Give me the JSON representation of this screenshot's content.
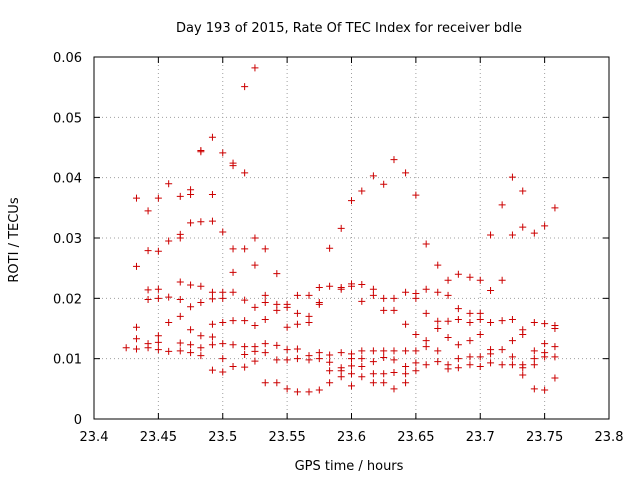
{
  "chart_data": {
    "type": "scatter",
    "title": "Day 193 of 2015, Rate Of TEC Index for receiver bdle",
    "xlabel": "GPS time / hours",
    "ylabel": "ROTI / TECUs",
    "xlim": [
      23.4,
      23.8
    ],
    "ylim": [
      0,
      0.06
    ],
    "xticks": [
      23.4,
      23.45,
      23.5,
      23.55,
      23.6,
      23.65,
      23.7,
      23.75,
      23.8
    ],
    "xtick_labels": [
      "23.4",
      "23.45",
      "23.5",
      "23.55",
      "23.6",
      "23.65",
      "23.7",
      "23.75",
      "23.8"
    ],
    "yticks": [
      0,
      0.01,
      0.02,
      0.03,
      0.04,
      0.05,
      0.06
    ],
    "ytick_labels": [
      "0",
      "0.01",
      "0.02",
      "0.03",
      "0.04",
      "0.05",
      "0.06"
    ],
    "grid": true,
    "marker": "+",
    "color": "#cc0000",
    "series": [
      {
        "points": [
          [
            23.425,
            0.0118
          ],
          [
            23.433,
            0.0366
          ],
          [
            23.433,
            0.0253
          ],
          [
            23.433,
            0.0152
          ],
          [
            23.433,
            0.0133
          ],
          [
            23.433,
            0.0116
          ],
          [
            23.442,
            0.0345
          ],
          [
            23.442,
            0.0279
          ],
          [
            23.442,
            0.0214
          ],
          [
            23.442,
            0.0198
          ],
          [
            23.442,
            0.0125
          ],
          [
            23.442,
            0.0118
          ],
          [
            23.45,
            0.0366
          ],
          [
            23.45,
            0.0278
          ],
          [
            23.45,
            0.0215
          ],
          [
            23.45,
            0.02
          ],
          [
            23.45,
            0.0138
          ],
          [
            23.45,
            0.0127
          ],
          [
            23.45,
            0.0115
          ],
          [
            23.458,
            0.039
          ],
          [
            23.458,
            0.0295
          ],
          [
            23.458,
            0.0202
          ],
          [
            23.458,
            0.016
          ],
          [
            23.458,
            0.0112
          ],
          [
            23.467,
            0.0369
          ],
          [
            23.467,
            0.0306
          ],
          [
            23.467,
            0.03
          ],
          [
            23.467,
            0.0227
          ],
          [
            23.467,
            0.0198
          ],
          [
            23.467,
            0.017
          ],
          [
            23.467,
            0.0126
          ],
          [
            23.467,
            0.0113
          ],
          [
            23.475,
            0.038
          ],
          [
            23.475,
            0.0372
          ],
          [
            23.475,
            0.0325
          ],
          [
            23.475,
            0.0222
          ],
          [
            23.475,
            0.0186
          ],
          [
            23.475,
            0.0148
          ],
          [
            23.475,
            0.0123
          ],
          [
            23.475,
            0.011
          ],
          [
            23.483,
            0.0445
          ],
          [
            23.483,
            0.0443
          ],
          [
            23.483,
            0.0327
          ],
          [
            23.483,
            0.022
          ],
          [
            23.483,
            0.0193
          ],
          [
            23.483,
            0.0138
          ],
          [
            23.483,
            0.0118
          ],
          [
            23.483,
            0.0105
          ],
          [
            23.492,
            0.0467
          ],
          [
            23.492,
            0.0372
          ],
          [
            23.492,
            0.0328
          ],
          [
            23.492,
            0.021
          ],
          [
            23.492,
            0.0199
          ],
          [
            23.492,
            0.0157
          ],
          [
            23.492,
            0.0136
          ],
          [
            23.492,
            0.0123
          ],
          [
            23.492,
            0.0081
          ],
          [
            23.5,
            0.0441
          ],
          [
            23.5,
            0.031
          ],
          [
            23.5,
            0.021
          ],
          [
            23.5,
            0.02
          ],
          [
            23.5,
            0.016
          ],
          [
            23.5,
            0.0125
          ],
          [
            23.5,
            0.01
          ],
          [
            23.5,
            0.0078
          ],
          [
            23.508,
            0.0424
          ],
          [
            23.508,
            0.042
          ],
          [
            23.508,
            0.0282
          ],
          [
            23.508,
            0.0243
          ],
          [
            23.508,
            0.021
          ],
          [
            23.508,
            0.0163
          ],
          [
            23.508,
            0.0123
          ],
          [
            23.508,
            0.0087
          ],
          [
            23.517,
            0.0551
          ],
          [
            23.517,
            0.0408
          ],
          [
            23.517,
            0.0282
          ],
          [
            23.517,
            0.0197
          ],
          [
            23.517,
            0.0163
          ],
          [
            23.517,
            0.012
          ],
          [
            23.517,
            0.0107
          ],
          [
            23.517,
            0.0086
          ],
          [
            23.525,
            0.0582
          ],
          [
            23.525,
            0.03
          ],
          [
            23.525,
            0.0255
          ],
          [
            23.525,
            0.0185
          ],
          [
            23.525,
            0.0155
          ],
          [
            23.525,
            0.012
          ],
          [
            23.525,
            0.0112
          ],
          [
            23.525,
            0.0096
          ],
          [
            23.533,
            0.0282
          ],
          [
            23.533,
            0.0205
          ],
          [
            23.533,
            0.0193
          ],
          [
            23.533,
            0.0165
          ],
          [
            23.533,
            0.0125
          ],
          [
            23.533,
            0.011
          ],
          [
            23.533,
            0.006
          ],
          [
            23.542,
            0.0241
          ],
          [
            23.542,
            0.019
          ],
          [
            23.542,
            0.018
          ],
          [
            23.542,
            0.0122
          ],
          [
            23.542,
            0.0098
          ],
          [
            23.542,
            0.006
          ],
          [
            23.55,
            0.019
          ],
          [
            23.55,
            0.0185
          ],
          [
            23.55,
            0.0152
          ],
          [
            23.55,
            0.0115
          ],
          [
            23.55,
            0.0098
          ],
          [
            23.55,
            0.005
          ],
          [
            23.558,
            0.0205
          ],
          [
            23.558,
            0.0175
          ],
          [
            23.558,
            0.0157
          ],
          [
            23.558,
            0.0116
          ],
          [
            23.558,
            0.01
          ],
          [
            23.558,
            0.0045
          ],
          [
            23.567,
            0.0205
          ],
          [
            23.567,
            0.017
          ],
          [
            23.567,
            0.016
          ],
          [
            23.567,
            0.0105
          ],
          [
            23.567,
            0.0098
          ],
          [
            23.567,
            0.0045
          ],
          [
            23.575,
            0.0218
          ],
          [
            23.575,
            0.0193
          ],
          [
            23.575,
            0.019
          ],
          [
            23.575,
            0.011
          ],
          [
            23.575,
            0.01
          ],
          [
            23.575,
            0.0048
          ],
          [
            23.583,
            0.0283
          ],
          [
            23.583,
            0.022
          ],
          [
            23.583,
            0.0106
          ],
          [
            23.583,
            0.0094
          ],
          [
            23.583,
            0.008
          ],
          [
            23.583,
            0.006
          ],
          [
            23.592,
            0.0316
          ],
          [
            23.592,
            0.0218
          ],
          [
            23.592,
            0.0215
          ],
          [
            23.592,
            0.011
          ],
          [
            23.592,
            0.0085
          ],
          [
            23.592,
            0.008
          ],
          [
            23.592,
            0.007
          ],
          [
            23.6,
            0.0362
          ],
          [
            23.6,
            0.0224
          ],
          [
            23.6,
            0.022
          ],
          [
            23.6,
            0.0108
          ],
          [
            23.6,
            0.01
          ],
          [
            23.6,
            0.0088
          ],
          [
            23.6,
            0.0075
          ],
          [
            23.6,
            0.0055
          ],
          [
            23.608,
            0.0378
          ],
          [
            23.608,
            0.0223
          ],
          [
            23.608,
            0.0195
          ],
          [
            23.608,
            0.0113
          ],
          [
            23.608,
            0.01
          ],
          [
            23.608,
            0.0087
          ],
          [
            23.608,
            0.007
          ],
          [
            23.617,
            0.0403
          ],
          [
            23.617,
            0.0215
          ],
          [
            23.617,
            0.0205
          ],
          [
            23.617,
            0.0113
          ],
          [
            23.617,
            0.0095
          ],
          [
            23.617,
            0.0075
          ],
          [
            23.617,
            0.006
          ],
          [
            23.625,
            0.0389
          ],
          [
            23.625,
            0.02
          ],
          [
            23.625,
            0.018
          ],
          [
            23.625,
            0.0113
          ],
          [
            23.625,
            0.0102
          ],
          [
            23.625,
            0.0075
          ],
          [
            23.625,
            0.006
          ],
          [
            23.633,
            0.043
          ],
          [
            23.633,
            0.02
          ],
          [
            23.633,
            0.018
          ],
          [
            23.633,
            0.0113
          ],
          [
            23.633,
            0.0098
          ],
          [
            23.633,
            0.0077
          ],
          [
            23.633,
            0.005
          ],
          [
            23.642,
            0.0408
          ],
          [
            23.642,
            0.021
          ],
          [
            23.642,
            0.0157
          ],
          [
            23.642,
            0.0113
          ],
          [
            23.642,
            0.0087
          ],
          [
            23.642,
            0.0075
          ],
          [
            23.642,
            0.006
          ],
          [
            23.65,
            0.0371
          ],
          [
            23.65,
            0.0208
          ],
          [
            23.65,
            0.02
          ],
          [
            23.65,
            0.014
          ],
          [
            23.65,
            0.0113
          ],
          [
            23.65,
            0.0093
          ],
          [
            23.65,
            0.008
          ],
          [
            23.658,
            0.029
          ],
          [
            23.658,
            0.0215
          ],
          [
            23.658,
            0.0175
          ],
          [
            23.658,
            0.013
          ],
          [
            23.658,
            0.012
          ],
          [
            23.658,
            0.009
          ],
          [
            23.667,
            0.0255
          ],
          [
            23.667,
            0.021
          ],
          [
            23.667,
            0.0162
          ],
          [
            23.667,
            0.015
          ],
          [
            23.667,
            0.0113
          ],
          [
            23.667,
            0.0095
          ],
          [
            23.675,
            0.023
          ],
          [
            23.675,
            0.0205
          ],
          [
            23.675,
            0.0162
          ],
          [
            23.675,
            0.0135
          ],
          [
            23.675,
            0.009
          ],
          [
            23.675,
            0.0083
          ],
          [
            23.683,
            0.024
          ],
          [
            23.683,
            0.0183
          ],
          [
            23.683,
            0.0165
          ],
          [
            23.683,
            0.0123
          ],
          [
            23.683,
            0.01
          ],
          [
            23.683,
            0.0085
          ],
          [
            23.692,
            0.0235
          ],
          [
            23.692,
            0.0175
          ],
          [
            23.692,
            0.016
          ],
          [
            23.692,
            0.013
          ],
          [
            23.692,
            0.0103
          ],
          [
            23.692,
            0.009
          ],
          [
            23.7,
            0.023
          ],
          [
            23.7,
            0.0175
          ],
          [
            23.7,
            0.0165
          ],
          [
            23.7,
            0.014
          ],
          [
            23.7,
            0.0103
          ],
          [
            23.7,
            0.0087
          ],
          [
            23.708,
            0.0305
          ],
          [
            23.708,
            0.0213
          ],
          [
            23.708,
            0.016
          ],
          [
            23.708,
            0.0115
          ],
          [
            23.708,
            0.0108
          ],
          [
            23.708,
            0.0093
          ],
          [
            23.717,
            0.0355
          ],
          [
            23.717,
            0.023
          ],
          [
            23.717,
            0.0163
          ],
          [
            23.717,
            0.0115
          ],
          [
            23.717,
            0.009
          ],
          [
            23.725,
            0.0401
          ],
          [
            23.725,
            0.0305
          ],
          [
            23.725,
            0.0165
          ],
          [
            23.725,
            0.013
          ],
          [
            23.725,
            0.0103
          ],
          [
            23.725,
            0.009
          ],
          [
            23.733,
            0.0378
          ],
          [
            23.733,
            0.0318
          ],
          [
            23.733,
            0.0148
          ],
          [
            23.733,
            0.014
          ],
          [
            23.733,
            0.009
          ],
          [
            23.733,
            0.0085
          ],
          [
            23.733,
            0.0073
          ],
          [
            23.742,
            0.0308
          ],
          [
            23.742,
            0.016
          ],
          [
            23.742,
            0.0113
          ],
          [
            23.742,
            0.01
          ],
          [
            23.742,
            0.009
          ],
          [
            23.742,
            0.005
          ],
          [
            23.75,
            0.032
          ],
          [
            23.75,
            0.0158
          ],
          [
            23.75,
            0.0125
          ],
          [
            23.75,
            0.011
          ],
          [
            23.75,
            0.0103
          ],
          [
            23.75,
            0.0048
          ],
          [
            23.758,
            0.035
          ],
          [
            23.758,
            0.0155
          ],
          [
            23.758,
            0.015
          ],
          [
            23.758,
            0.012
          ],
          [
            23.758,
            0.0103
          ],
          [
            23.758,
            0.0068
          ]
        ]
      }
    ]
  }
}
